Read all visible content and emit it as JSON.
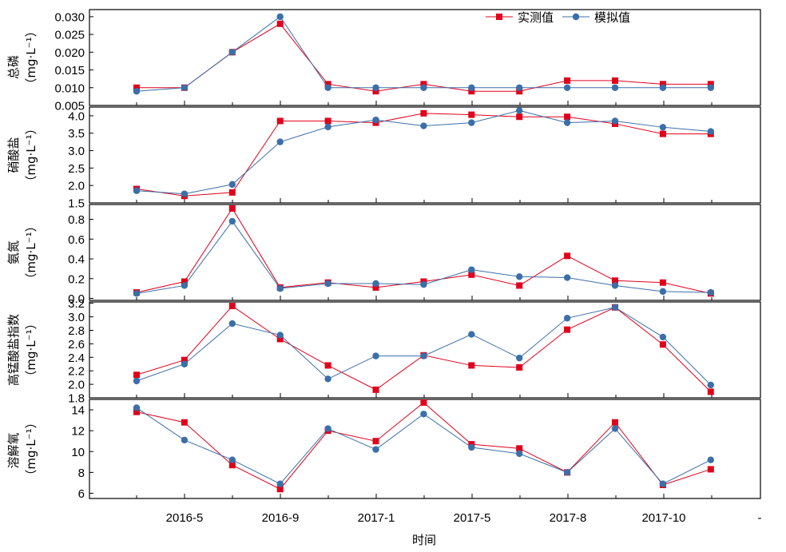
{
  "chart_data": {
    "type": "line",
    "x_tick_labels": [
      "2016-5",
      "2016-9",
      "2017-1",
      "2017-5",
      "2017-8",
      "2017-10",
      "-"
    ],
    "xlabel": "时间",
    "legend": {
      "placement": "top-right",
      "measured_label": "实测值",
      "simulated_label": "模拟值"
    },
    "colors": {
      "measured": "#e0001b",
      "simulated": "#3b6fa8"
    },
    "panels": [
      {
        "ylabel": "总磷",
        "yunit": "（mg·L⁻¹）",
        "ylim": [
          0.005,
          0.032
        ],
        "yticks": [
          "0.005",
          "0.010",
          "0.015",
          "0.020",
          "0.025",
          "0.030"
        ],
        "series": [
          {
            "name": "实测值",
            "values": [
              0.01,
              0.01,
              0.02,
              0.028,
              0.011,
              0.009,
              0.011,
              0.009,
              0.009,
              0.012,
              0.012,
              0.011,
              0.011
            ]
          },
          {
            "name": "模拟值",
            "values": [
              0.009,
              0.01,
              0.02,
              0.03,
              0.01,
              0.01,
              0.01,
              0.01,
              0.01,
              0.01,
              0.01,
              0.01,
              0.01
            ]
          }
        ]
      },
      {
        "ylabel": "硝酸盐",
        "yunit": "（mg·L⁻¹）",
        "ylim": [
          1.5,
          4.25
        ],
        "yticks": [
          "1.5",
          "2.0",
          "2.5",
          "3.0",
          "3.5",
          "4.0"
        ],
        "series": [
          {
            "name": "实测值",
            "values": [
              1.9,
              1.7,
              1.8,
              3.85,
              3.85,
              3.8,
              4.07,
              4.03,
              3.97,
              3.97,
              3.77,
              3.48,
              3.48
            ]
          },
          {
            "name": "模拟值",
            "values": [
              1.85,
              1.76,
              2.03,
              3.25,
              3.68,
              3.88,
              3.71,
              3.8,
              4.15,
              3.8,
              3.85,
              3.67,
              3.55
            ]
          }
        ]
      },
      {
        "ylabel": "氨氮",
        "yunit": "（mg·L⁻¹）",
        "ylim": [
          -0.02,
          0.95
        ],
        "yticks": [
          "0.0",
          "0.2",
          "0.4",
          "0.6",
          "0.8"
        ],
        "series": [
          {
            "name": "实测值",
            "values": [
              0.06,
              0.17,
              0.91,
              0.11,
              0.16,
              0.11,
              0.17,
              0.24,
              0.13,
              0.43,
              0.18,
              0.16,
              0.05
            ]
          },
          {
            "name": "模拟值",
            "values": [
              0.05,
              0.13,
              0.78,
              0.1,
              0.15,
              0.15,
              0.14,
              0.29,
              0.22,
              0.21,
              0.13,
              0.07,
              0.06
            ]
          }
        ]
      },
      {
        "ylabel": "高锰酸盐指数",
        "yunit": "（mg·L⁻¹）",
        "ylim": [
          1.8,
          3.22
        ],
        "yticks": [
          "1.8",
          "2.0",
          "2.2",
          "2.4",
          "2.6",
          "2.8",
          "3.0",
          "3.2"
        ],
        "series": [
          {
            "name": "实测值",
            "values": [
              2.14,
              2.36,
              3.16,
              2.67,
              2.28,
              1.92,
              2.43,
              2.28,
              2.25,
              2.81,
              3.14,
              2.59,
              1.89
            ]
          },
          {
            "name": "模拟值",
            "values": [
              2.05,
              2.3,
              2.9,
              2.73,
              2.08,
              2.42,
              2.42,
              2.74,
              2.39,
              2.98,
              3.14,
              2.7,
              1.99
            ]
          }
        ]
      },
      {
        "ylabel": "溶解氧",
        "yunit": "（mg·L⁻¹）",
        "ylim": [
          5.5,
          15
        ],
        "yticks": [
          "6",
          "8",
          "10",
          "12",
          "14"
        ],
        "series": [
          {
            "name": "实测值",
            "values": [
              13.8,
              12.8,
              8.7,
              6.4,
              12.0,
              11.0,
              14.7,
              10.7,
              10.3,
              8.0,
              12.8,
              6.8,
              8.3
            ]
          },
          {
            "name": "模拟值",
            "values": [
              14.2,
              11.1,
              9.2,
              6.9,
              12.2,
              10.2,
              13.6,
              10.4,
              9.8,
              8.0,
              12.2,
              6.9,
              9.2
            ]
          }
        ]
      }
    ]
  }
}
